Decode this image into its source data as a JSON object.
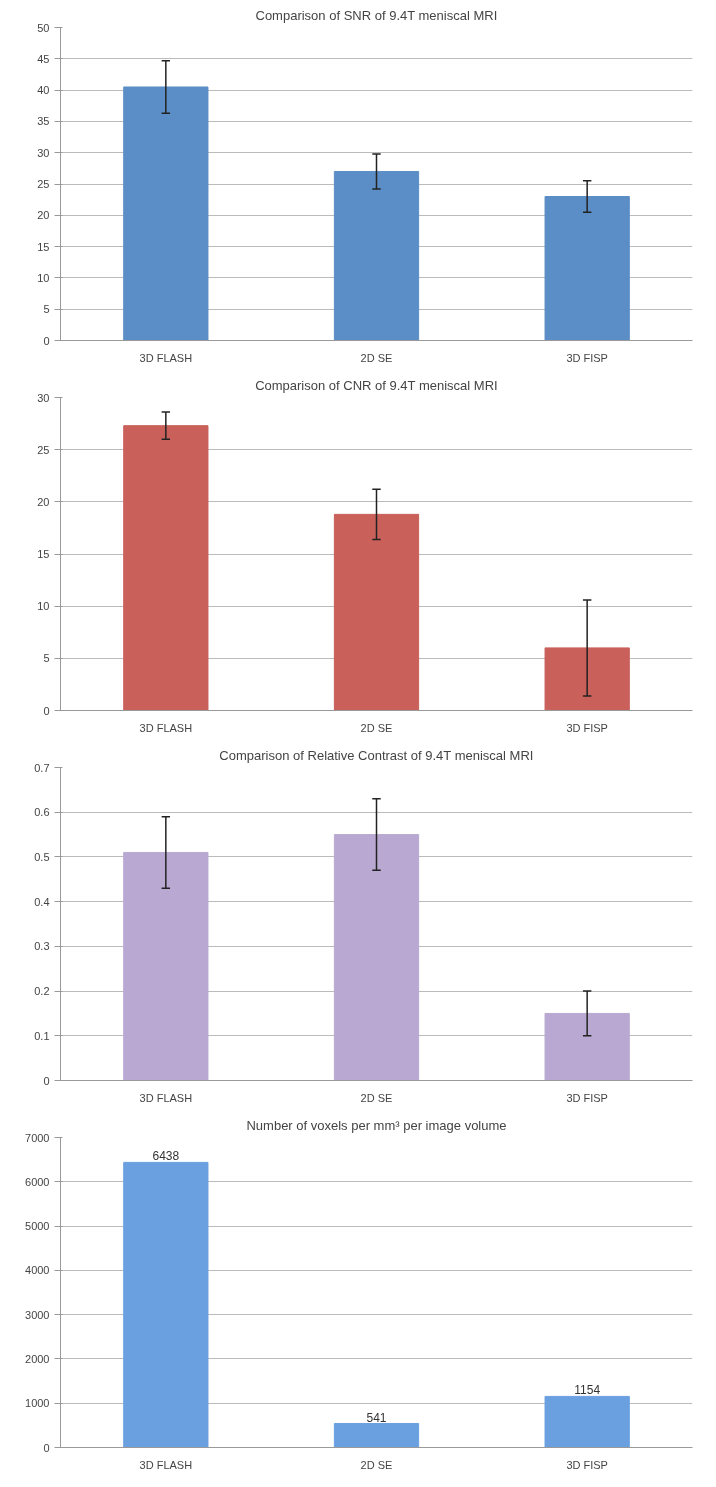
{
  "chart_data": [
    {
      "type": "bar",
      "title": "Comparison of SNR of 9.4T meniscal MRI",
      "categories": [
        "3D FLASH",
        "2D SE",
        "3D FISP"
      ],
      "values": [
        40.5,
        27,
        23
      ],
      "errors": [
        4.2,
        2.8,
        2.5
      ],
      "color": "#5b8ec6",
      "ylim": [
        0,
        50
      ],
      "yticks": [
        0,
        5,
        10,
        15,
        20,
        25,
        30,
        35,
        40,
        45,
        50
      ],
      "grid": "y"
    },
    {
      "type": "bar",
      "title": "Comparison of CNR of 9.4T meniscal MRI",
      "categories": [
        "3D FLASH",
        "2D SE",
        "3D FISP"
      ],
      "values": [
        27.3,
        18.8,
        6
      ],
      "errors": [
        1.3,
        2.4,
        4.6
      ],
      "color": "#c9605a",
      "ylim": [
        0,
        30
      ],
      "yticks": [
        0,
        5,
        10,
        15,
        20,
        25,
        30
      ],
      "grid": "y"
    },
    {
      "type": "bar",
      "title": "Comparison of Relative Contrast of 9.4T meniscal MRI",
      "categories": [
        "3D FLASH",
        "2D SE",
        "3D FISP"
      ],
      "values": [
        0.51,
        0.55,
        0.15
      ],
      "errors": [
        0.08,
        0.08,
        0.05
      ],
      "color": "#b9a9d2",
      "ylim": [
        0,
        0.7
      ],
      "yticks": [
        0,
        0.1,
        0.2,
        0.3,
        0.4,
        0.5,
        0.6,
        0.7
      ],
      "grid": "y"
    },
    {
      "type": "bar",
      "title": "Number of voxels per mm³ per image volume",
      "categories": [
        "3D FLASH",
        "2D SE",
        "3D FISP"
      ],
      "values": [
        6438,
        541,
        1154
      ],
      "color": "#6a9fe0",
      "ylim": [
        0,
        7000
      ],
      "yticks": [
        0,
        1000,
        2000,
        3000,
        4000,
        5000,
        6000,
        7000
      ],
      "grid": "y",
      "data_labels": true
    }
  ]
}
